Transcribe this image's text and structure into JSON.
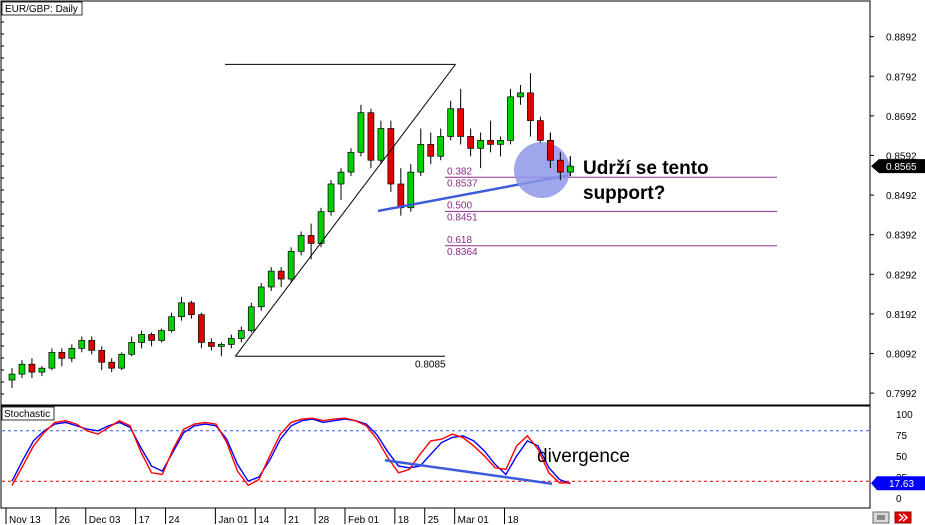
{
  "chart_data": [
    {
      "type": "candlestick",
      "title": "EUR/GBP: Daily",
      "ylim": [
        0.7962,
        0.8982
      ],
      "y_ticks": [
        "0.8892",
        "0.8792",
        "0.8692",
        "0.8592",
        "0.8492",
        "0.8392",
        "0.8292",
        "0.8192",
        "0.8092",
        "0.7992"
      ],
      "x_ticks": [
        {
          "i": 0,
          "label": "Nov 13"
        },
        {
          "i": 5,
          "label": "26"
        },
        {
          "i": 8,
          "label": "Dec 03"
        },
        {
          "i": 13,
          "label": "17"
        },
        {
          "i": 16,
          "label": "24"
        },
        {
          "i": 21,
          "label": "Jan 01"
        },
        {
          "i": 25,
          "label": "14"
        },
        {
          "i": 28,
          "label": "21"
        },
        {
          "i": 31,
          "label": "28"
        },
        {
          "i": 34,
          "label": "Feb 01"
        },
        {
          "i": 39,
          "label": "18"
        },
        {
          "i": 42,
          "label": "25"
        },
        {
          "i": 45,
          "label": "Mar 01"
        },
        {
          "i": 50,
          "label": "18"
        }
      ],
      "current_price": "0.8565",
      "candles": [
        [
          0.8025,
          0.8055,
          0.8005,
          0.804
        ],
        [
          0.804,
          0.8075,
          0.803,
          0.8065
        ],
        [
          0.8065,
          0.808,
          0.803,
          0.8045
        ],
        [
          0.8045,
          0.806,
          0.8035,
          0.8055
        ],
        [
          0.8055,
          0.8105,
          0.805,
          0.8095
        ],
        [
          0.8095,
          0.8105,
          0.806,
          0.808
        ],
        [
          0.808,
          0.8115,
          0.807,
          0.8105
        ],
        [
          0.8105,
          0.8135,
          0.8095,
          0.8125
        ],
        [
          0.8125,
          0.8135,
          0.809,
          0.81
        ],
        [
          0.81,
          0.811,
          0.805,
          0.807
        ],
        [
          0.807,
          0.808,
          0.8045,
          0.8055
        ],
        [
          0.8055,
          0.8095,
          0.805,
          0.809
        ],
        [
          0.809,
          0.8135,
          0.8085,
          0.812
        ],
        [
          0.812,
          0.815,
          0.8105,
          0.814
        ],
        [
          0.814,
          0.8145,
          0.811,
          0.8125
        ],
        [
          0.8125,
          0.8155,
          0.812,
          0.815
        ],
        [
          0.815,
          0.8195,
          0.8145,
          0.8185
        ],
        [
          0.8185,
          0.8235,
          0.8175,
          0.822
        ],
        [
          0.822,
          0.8225,
          0.818,
          0.819
        ],
        [
          0.819,
          0.8195,
          0.8105,
          0.812
        ],
        [
          0.812,
          0.813,
          0.81,
          0.811
        ],
        [
          0.811,
          0.812,
          0.8085,
          0.8115
        ],
        [
          0.8115,
          0.814,
          0.8105,
          0.813
        ],
        [
          0.813,
          0.816,
          0.812,
          0.815
        ],
        [
          0.815,
          0.822,
          0.8145,
          0.821
        ],
        [
          0.821,
          0.827,
          0.82,
          0.826
        ],
        [
          0.826,
          0.831,
          0.825,
          0.83
        ],
        [
          0.83,
          0.831,
          0.826,
          0.828
        ],
        [
          0.828,
          0.836,
          0.827,
          0.835
        ],
        [
          0.835,
          0.84,
          0.834,
          0.839
        ],
        [
          0.839,
          0.842,
          0.833,
          0.837
        ],
        [
          0.837,
          0.846,
          0.836,
          0.845
        ],
        [
          0.845,
          0.853,
          0.844,
          0.852
        ],
        [
          0.852,
          0.856,
          0.848,
          0.855
        ],
        [
          0.855,
          0.861,
          0.854,
          0.86
        ],
        [
          0.86,
          0.872,
          0.859,
          0.87
        ],
        [
          0.87,
          0.871,
          0.856,
          0.858
        ],
        [
          0.858,
          0.868,
          0.857,
          0.866
        ],
        [
          0.866,
          0.868,
          0.85,
          0.852
        ],
        [
          0.852,
          0.856,
          0.844,
          0.846
        ],
        [
          0.846,
          0.857,
          0.845,
          0.855
        ],
        [
          0.855,
          0.866,
          0.854,
          0.862
        ],
        [
          0.862,
          0.865,
          0.857,
          0.859
        ],
        [
          0.859,
          0.866,
          0.858,
          0.864
        ],
        [
          0.864,
          0.873,
          0.863,
          0.871
        ],
        [
          0.871,
          0.876,
          0.862,
          0.864
        ],
        [
          0.864,
          0.866,
          0.859,
          0.861
        ],
        [
          0.861,
          0.865,
          0.856,
          0.863
        ],
        [
          0.863,
          0.868,
          0.86,
          0.862
        ],
        [
          0.862,
          0.864,
          0.859,
          0.863
        ],
        [
          0.863,
          0.876,
          0.862,
          0.874
        ],
        [
          0.874,
          0.877,
          0.872,
          0.875
        ],
        [
          0.875,
          0.88,
          0.864,
          0.868
        ],
        [
          0.868,
          0.869,
          0.862,
          0.863
        ],
        [
          0.863,
          0.865,
          0.856,
          0.858
        ],
        [
          0.858,
          0.86,
          0.853,
          0.855
        ],
        [
          0.855,
          0.859,
          0.854,
          0.8565
        ]
      ],
      "swing_line": {
        "from": {
          "i": 22,
          "price": 0.8085
        },
        "to": {
          "i": 50,
          "price": 0.8822
        }
      },
      "swing_low_label": "0.8085",
      "fib_levels": [
        {
          "ratio": "0.382",
          "price": "0.8537",
          "value": 0.8537
        },
        {
          "ratio": "0.500",
          "price": "0.8451",
          "value": 0.8451
        },
        {
          "ratio": "0.618",
          "price": "0.8364",
          "value": 0.8364
        }
      ],
      "support_line": {
        "from": {
          "i": 37,
          "price": 0.8452
        },
        "to": {
          "i": 57,
          "price": 0.8542
        }
      },
      "annotation": "Udrží se tento support?"
    },
    {
      "type": "line",
      "title": "Stochastic",
      "ylim": [
        0,
        100
      ],
      "y_ticks": [
        "100",
        "75",
        "50",
        "25",
        "0"
      ],
      "levels": [
        80,
        20
      ],
      "current_value": "17.63",
      "series": [
        {
          "color": "#0000ff",
          "values": [
            20,
            45,
            68,
            80,
            88,
            90,
            86,
            82,
            80,
            86,
            90,
            84,
            60,
            38,
            32,
            55,
            78,
            86,
            88,
            86,
            70,
            40,
            20,
            25,
            45,
            70,
            86,
            92,
            94,
            90,
            92,
            94,
            92,
            88,
            75,
            55,
            38,
            36,
            38,
            52,
            66,
            72,
            74,
            68,
            56,
            40,
            28,
            50,
            68,
            62,
            36,
            22,
            17
          ]
        },
        {
          "color": "#ff0000",
          "values": [
            15,
            38,
            62,
            78,
            90,
            92,
            88,
            80,
            76,
            84,
            92,
            86,
            55,
            30,
            28,
            58,
            82,
            88,
            90,
            88,
            66,
            32,
            15,
            22,
            50,
            76,
            90,
            94,
            95,
            92,
            94,
            95,
            92,
            86,
            70,
            48,
            30,
            34,
            52,
            68,
            70,
            76,
            72,
            62,
            50,
            36,
            34,
            62,
            74,
            58,
            30,
            18,
            18
          ]
        }
      ],
      "annotation": "divergence"
    }
  ],
  "colors": {
    "bull": "#00d000",
    "bear": "#e00000",
    "fib": "#8a2d8a",
    "support": "#3b5bdb",
    "highlight": "#8f97e8",
    "price_tag": "#000000",
    "stoch_tag": "#0000ff"
  },
  "icons": [
    "scroll-left-icon",
    "scroll-right-icon"
  ]
}
